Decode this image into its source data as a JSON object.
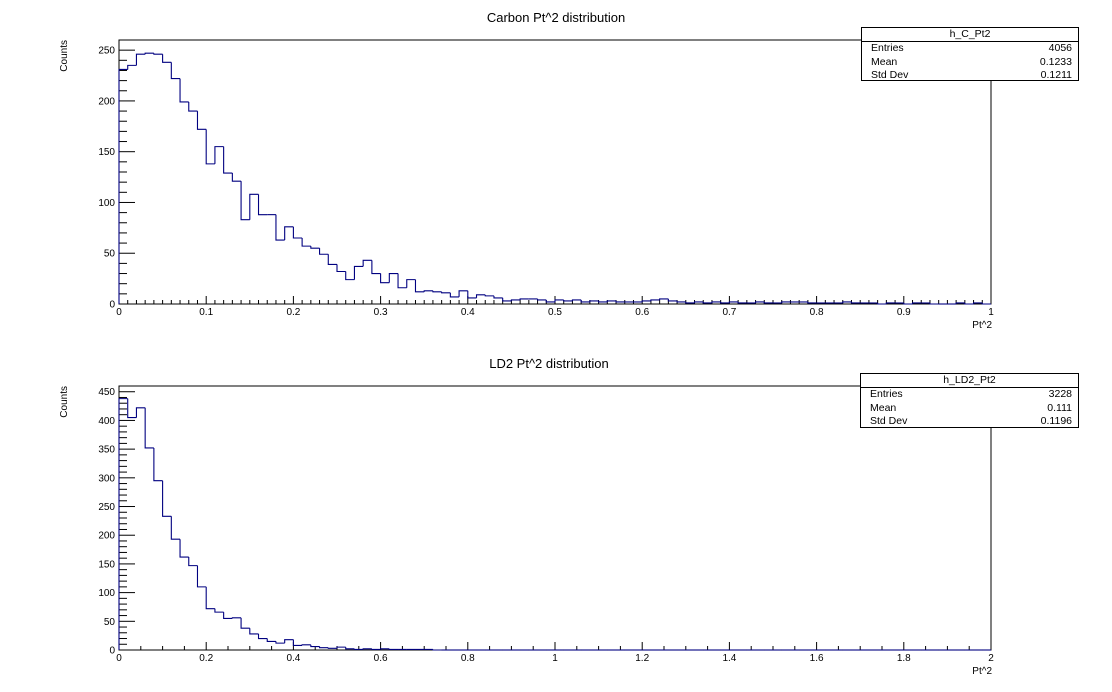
{
  "colors": {
    "line": "#000080",
    "frame": "#000000"
  },
  "chart_data": [
    {
      "type": "bar",
      "title": "Carbon  Pt^2 distribution",
      "xlabel": "Pt^2",
      "ylabel": "Counts",
      "xlim": [
        0,
        1
      ],
      "ylim": [
        0,
        260
      ],
      "bin_width": 0.01,
      "x_ticks": [
        0,
        0.1,
        0.2,
        0.3,
        0.4,
        0.5,
        0.6,
        0.7,
        0.8,
        0.9,
        1
      ],
      "x_tick_labels": [
        "0",
        "0.1",
        "0.2",
        "0.3",
        "0.4",
        "0.5",
        "0.6",
        "0.7",
        "0.8",
        "0.9",
        "1"
      ],
      "y_ticks": [
        0,
        50,
        100,
        150,
        200,
        250
      ],
      "y_tick_labels": [
        "0",
        "50",
        "100",
        "150",
        "200",
        "250"
      ],
      "values": [
        231,
        235,
        246,
        247,
        246,
        238,
        222,
        199,
        190,
        172,
        138,
        155,
        129,
        121,
        83,
        108,
        88,
        88,
        63,
        76,
        65,
        57,
        55,
        49,
        39,
        32,
        24,
        37,
        43,
        30,
        21,
        30,
        16,
        24,
        12,
        13,
        12,
        11,
        7,
        13,
        6,
        9,
        8,
        6,
        3,
        4,
        5,
        5,
        4,
        2,
        4,
        3,
        4,
        2,
        3,
        2,
        3,
        2,
        2,
        2,
        3,
        4,
        5,
        3,
        2,
        1,
        2,
        1,
        2,
        1,
        2,
        1,
        1,
        2,
        1,
        1,
        2,
        2,
        2,
        1,
        1,
        1,
        1,
        2,
        1,
        1,
        1,
        0,
        1,
        1,
        0,
        1,
        1,
        0,
        0,
        0,
        1,
        0,
        1,
        0
      ],
      "stats": {
        "name": "h_C_Pt2",
        "rows": [
          {
            "label": "Entries",
            "value": "4056"
          },
          {
            "label": "Mean",
            "value": "0.1233"
          },
          {
            "label": "Std Dev",
            "value": "0.1211"
          }
        ]
      }
    },
    {
      "type": "bar",
      "title": "LD2 Pt^2 distribution",
      "xlabel": "Pt^2",
      "ylabel": "Counts",
      "xlim": [
        0,
        2
      ],
      "ylim": [
        0,
        460
      ],
      "bin_width": 0.02,
      "x_ticks": [
        0,
        0.2,
        0.4,
        0.6,
        0.8,
        1,
        1.2,
        1.4,
        1.6,
        1.8,
        2
      ],
      "x_tick_labels": [
        "0",
        "0.2",
        "0.4",
        "0.6",
        "0.8",
        "1",
        "1.2",
        "1.4",
        "1.6",
        "1.8",
        "2"
      ],
      "y_ticks": [
        0,
        50,
        100,
        150,
        200,
        250,
        300,
        350,
        400,
        450
      ],
      "y_tick_labels": [
        "0",
        "50",
        "100",
        "150",
        "200",
        "250",
        "300",
        "350",
        "400",
        "450"
      ],
      "values": [
        438,
        405,
        422,
        352,
        295,
        233,
        193,
        162,
        147,
        110,
        72,
        66,
        55,
        56,
        38,
        28,
        20,
        15,
        12,
        18,
        8,
        9,
        6,
        4,
        3,
        5,
        2,
        1,
        2,
        1,
        2,
        1,
        1,
        1,
        1,
        1,
        0,
        0,
        0,
        0,
        0,
        0,
        0,
        0,
        0,
        0,
        0,
        0,
        0,
        0,
        0,
        0,
        0,
        0,
        0,
        0,
        0,
        0,
        0,
        0,
        0,
        0,
        0,
        0,
        0,
        0,
        0,
        0,
        0,
        0,
        0,
        0,
        0,
        0,
        0,
        0,
        0,
        0,
        0,
        0,
        0,
        0,
        0,
        0,
        0,
        0,
        0,
        0,
        0,
        0,
        0,
        0,
        0,
        0,
        0,
        0,
        0,
        0,
        0,
        0
      ],
      "stats": {
        "name": "h_LD2_Pt2",
        "rows": [
          {
            "label": "Entries",
            "value": "3228"
          },
          {
            "label": "Mean",
            "value": "0.111"
          },
          {
            "label": "Std Dev",
            "value": "0.1196"
          }
        ]
      }
    }
  ]
}
